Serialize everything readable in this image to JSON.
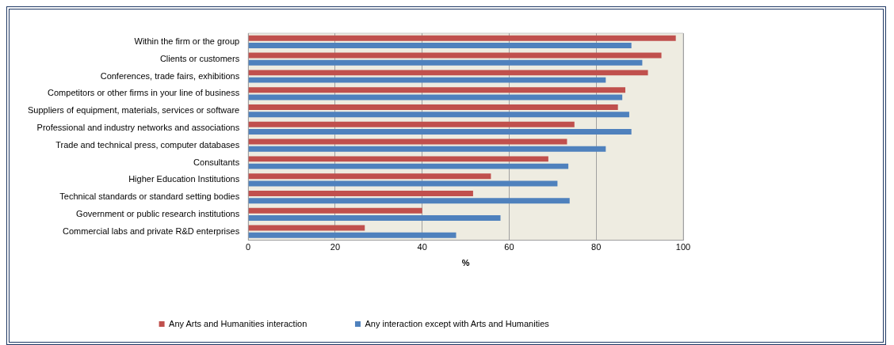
{
  "chart_data": {
    "type": "bar",
    "orientation": "horizontal",
    "xlabel": "%",
    "categories": [
      "Within the firm or the group",
      "Clients or customers",
      "Conferences, trade fairs, exhibitions",
      "Competitors or other firms in your line of business",
      "Suppliers of equipment, materials, services or software",
      "Professional and industry networks and associations",
      "Trade and technical press, computer databases",
      "Consultants",
      "Higher Education Institutions",
      "Technical standards or standard setting bodies",
      "Government or public research institutions",
      "Commercial labs and private R&D enterprises"
    ],
    "series": [
      {
        "name": "Any Arts and Humanities interaction",
        "color": "#c0504d",
        "values": [
          98.3,
          95.0,
          91.9,
          86.7,
          85.0,
          75.0,
          73.3,
          69.0,
          55.8,
          51.7,
          40.0,
          26.8
        ]
      },
      {
        "name": "Any interaction except with Arts and Humanities",
        "color": "#4f81bd",
        "values": [
          88.1,
          90.6,
          82.2,
          86.0,
          87.6,
          88.1,
          82.2,
          73.6,
          71.1,
          73.9,
          58.0,
          47.8
        ]
      }
    ],
    "xlim": [
      0,
      100
    ],
    "xticks": [
      0,
      20,
      40,
      60,
      80,
      100
    ],
    "grid": "x",
    "legend": "bottom"
  }
}
